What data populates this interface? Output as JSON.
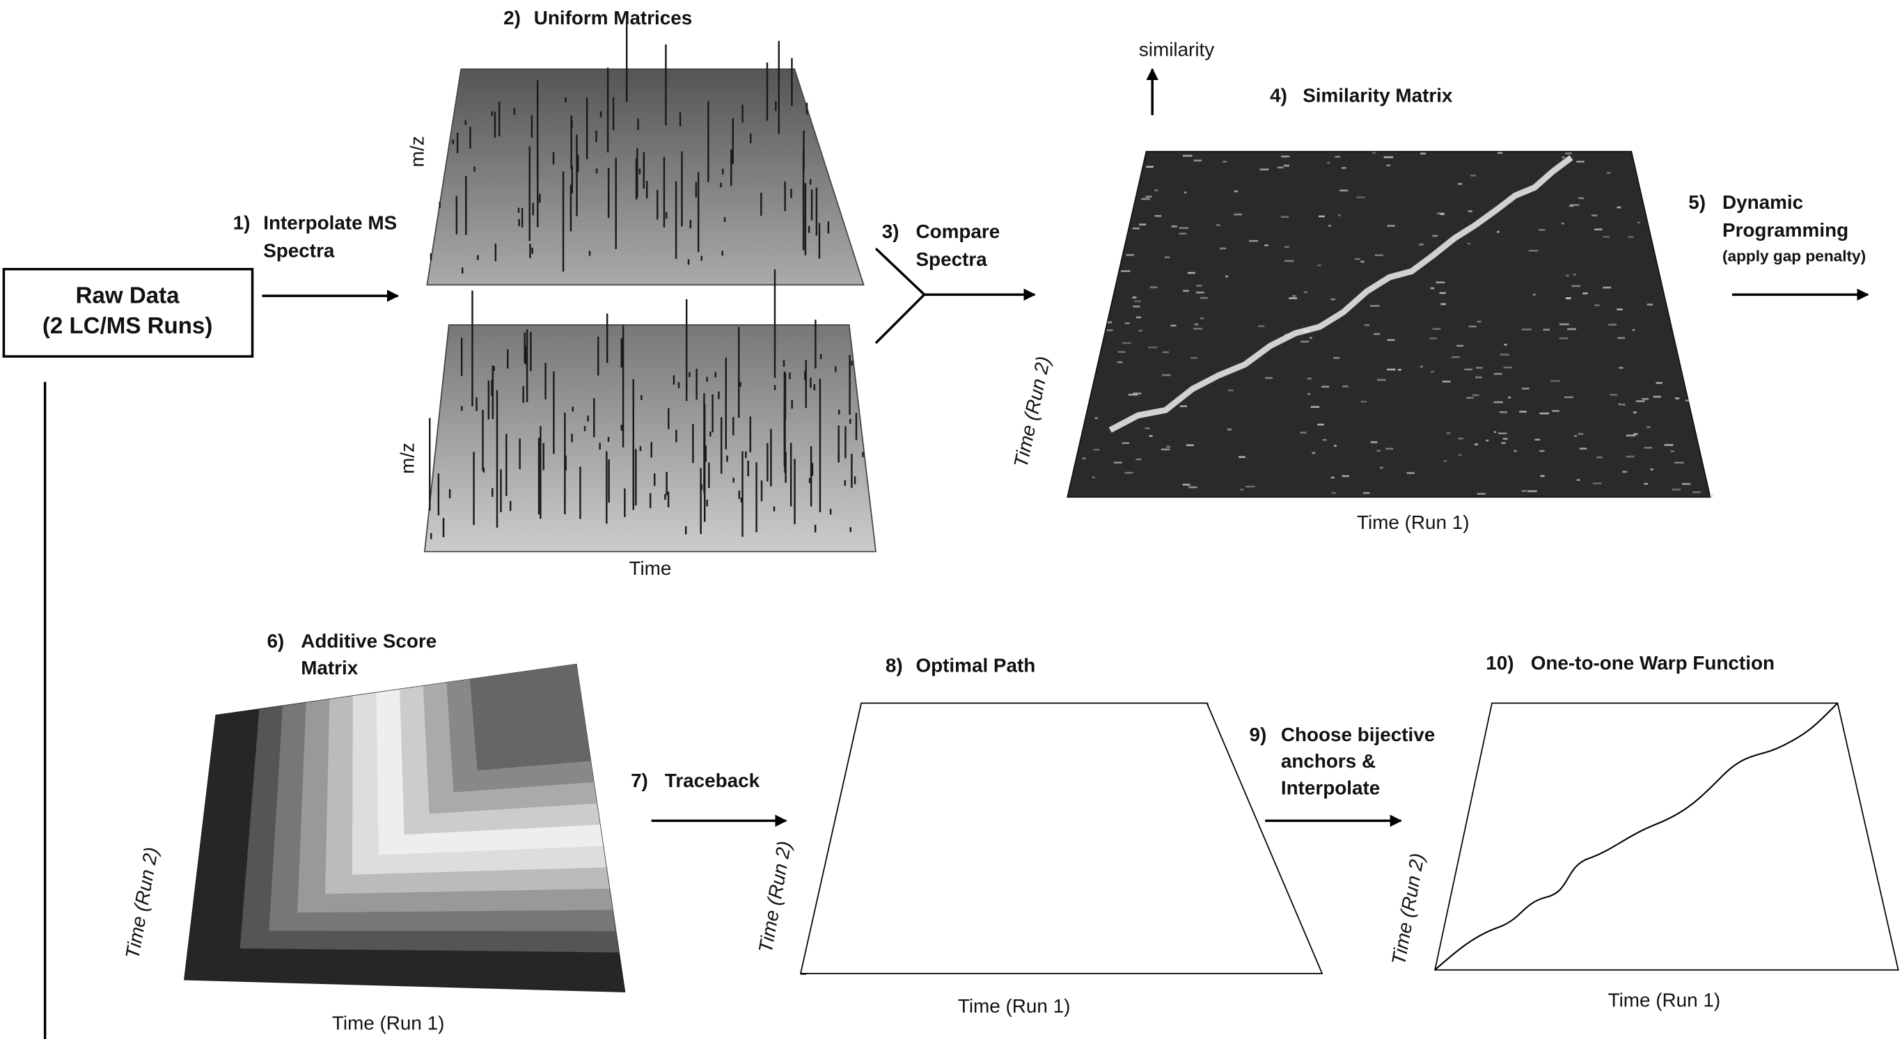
{
  "raw_data": {
    "lines": [
      "Raw Data",
      "(2 LC/MS Runs)"
    ]
  },
  "steps": [
    {
      "number": "1)",
      "lines": [
        "Interpolate MS",
        "Spectra"
      ]
    },
    {
      "number": "2)",
      "lines": [
        "Uniform Matrices"
      ]
    },
    {
      "number": "3)",
      "lines": [
        "Compare",
        "Spectra"
      ]
    },
    {
      "number": "4)",
      "lines": [
        "Similarity Matrix"
      ]
    },
    {
      "number": "5)",
      "lines": [
        "Dynamic",
        "Programming",
        "(apply gap penalty)"
      ]
    },
    {
      "number": "6)",
      "lines": [
        "Additive Score",
        "Matrix"
      ]
    },
    {
      "number": "7)",
      "lines": [
        "Traceback"
      ]
    },
    {
      "number": "8)",
      "lines": [
        "Optimal Path"
      ]
    },
    {
      "number": "9)",
      "lines": [
        "Choose bijective",
        "anchors &",
        "Interpolate"
      ]
    },
    {
      "number": "10)",
      "lines": [
        "One-to-one Warp Function"
      ]
    }
  ],
  "axis_labels": {
    "matrix_top_y": "m/z",
    "matrix_bottom_y": "m/z",
    "matrix_x": "Time",
    "similarity_z": "similarity",
    "similarity_y": "Time (Run 2)",
    "similarity_x": "Time (Run 1)",
    "score_y": "Time (Run 2)",
    "score_x": "Time (Run 1)",
    "path_y": "Time (Run 2)",
    "path_x": "Time (Run 1)",
    "warp_y": "Time (Run 2)",
    "warp_x": "Time (Run 1)"
  }
}
